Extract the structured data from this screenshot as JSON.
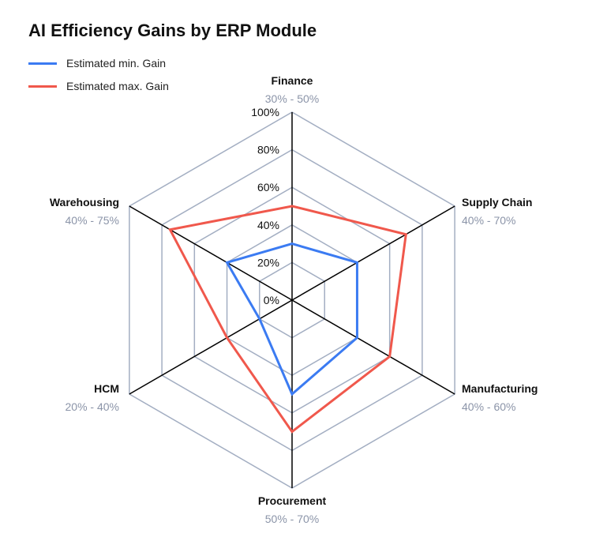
{
  "chart_data": {
    "type": "radar",
    "title": "AI Efficiency Gains by ERP Module",
    "categories": [
      "Finance",
      "Supply Chain",
      "Manufacturing",
      "Procurement",
      "HCM",
      "Warehousing"
    ],
    "category_ranges": [
      "30% - 50%",
      "40% - 70%",
      "40% - 60%",
      "50% - 70%",
      "20% - 40%",
      "40% - 75%"
    ],
    "series": [
      {
        "name": "Estimated min. Gain",
        "color": "#3b7bf2",
        "values": [
          30,
          40,
          40,
          50,
          20,
          40
        ]
      },
      {
        "name": "Estimated max. Gain",
        "color": "#f0584c",
        "values": [
          50,
          70,
          60,
          70,
          40,
          75
        ]
      }
    ],
    "radial_ticks": [
      "0%",
      "20%",
      "40%",
      "60%",
      "80%",
      "100%"
    ],
    "rlim": [
      0,
      100
    ],
    "grid": true,
    "legend_position": "top-left",
    "grid_color": "#a3aec2",
    "axis_color": "#000000",
    "range_label_color": "#8b94a8"
  }
}
